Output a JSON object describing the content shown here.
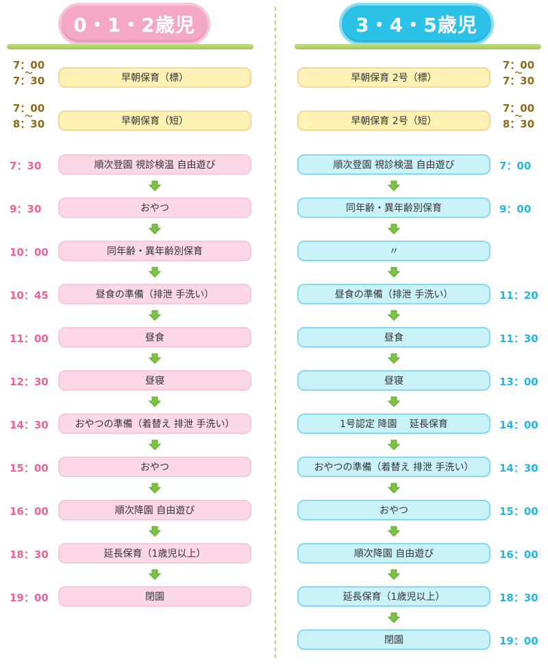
{
  "headings": {
    "left": "0・1・2歳児",
    "right": "3・4・5歳児"
  },
  "left": {
    "early": [
      {
        "start": "7：00",
        "tilde": "〜",
        "end": "7：30",
        "label": "早朝保育（標）"
      },
      {
        "start": "7：00",
        "tilde": "〜",
        "end": "8：30",
        "label": "早朝保育（短）"
      }
    ],
    "items": [
      {
        "time": "7：30",
        "label": "順次登園 視診検温 自由遊び"
      },
      {
        "time": "9：30",
        "label": "おやつ"
      },
      {
        "time": "10：00",
        "label": "同年齢・異年齢別保育"
      },
      {
        "time": "10：45",
        "label": "昼食の準備（排泄 手洗い）"
      },
      {
        "time": "11：00",
        "label": "昼食"
      },
      {
        "time": "12：30",
        "label": "昼寝"
      },
      {
        "time": "14：30",
        "label": "おやつの準備（着替え 排泄 手洗い）"
      },
      {
        "time": "15：00",
        "label": "おやつ"
      },
      {
        "time": "16：00",
        "label": "順次降園 自由遊び"
      },
      {
        "time": "18：30",
        "label": "延長保育（1歳児以上）"
      },
      {
        "time": "19：00",
        "label": "閉園"
      }
    ]
  },
  "right": {
    "early": [
      {
        "start": "7：00",
        "tilde": "〜",
        "end": "7：30",
        "label": "早朝保育 2号（標）"
      },
      {
        "start": "7：00",
        "tilde": "〜",
        "end": "8：30",
        "label": "早朝保育 2号（短）"
      }
    ],
    "items": [
      {
        "time": "7：00",
        "label": "順次登園 視診検温 自由遊び"
      },
      {
        "time": "9：00",
        "label": "同年齢・異年齢別保育"
      },
      {
        "time": "",
        "label": "〃"
      },
      {
        "time": "11：20",
        "label": "昼食の準備（排泄 手洗い）"
      },
      {
        "time": "11：30",
        "label": "昼食"
      },
      {
        "time": "13：00",
        "label": "昼寝"
      },
      {
        "time": "14：00",
        "label": "1号認定 降園　 延長保育"
      },
      {
        "time": "14：30",
        "label": "おやつの準備（着替え 排泄 手洗い）"
      },
      {
        "time": "15：00",
        "label": "おやつ"
      },
      {
        "time": "16：00",
        "label": "順次降園 自由遊び"
      },
      {
        "time": "18：30",
        "label": "延長保育（1歳児以上）"
      },
      {
        "time": "19：00",
        "label": "閉園"
      }
    ]
  },
  "colors": {
    "pink_time": "#f06292",
    "blue_time": "#26b5e3",
    "brown_time": "#8a6a1e",
    "arrow": "#7cc243"
  },
  "icons": {
    "arrow": "down-arrow-icon"
  }
}
